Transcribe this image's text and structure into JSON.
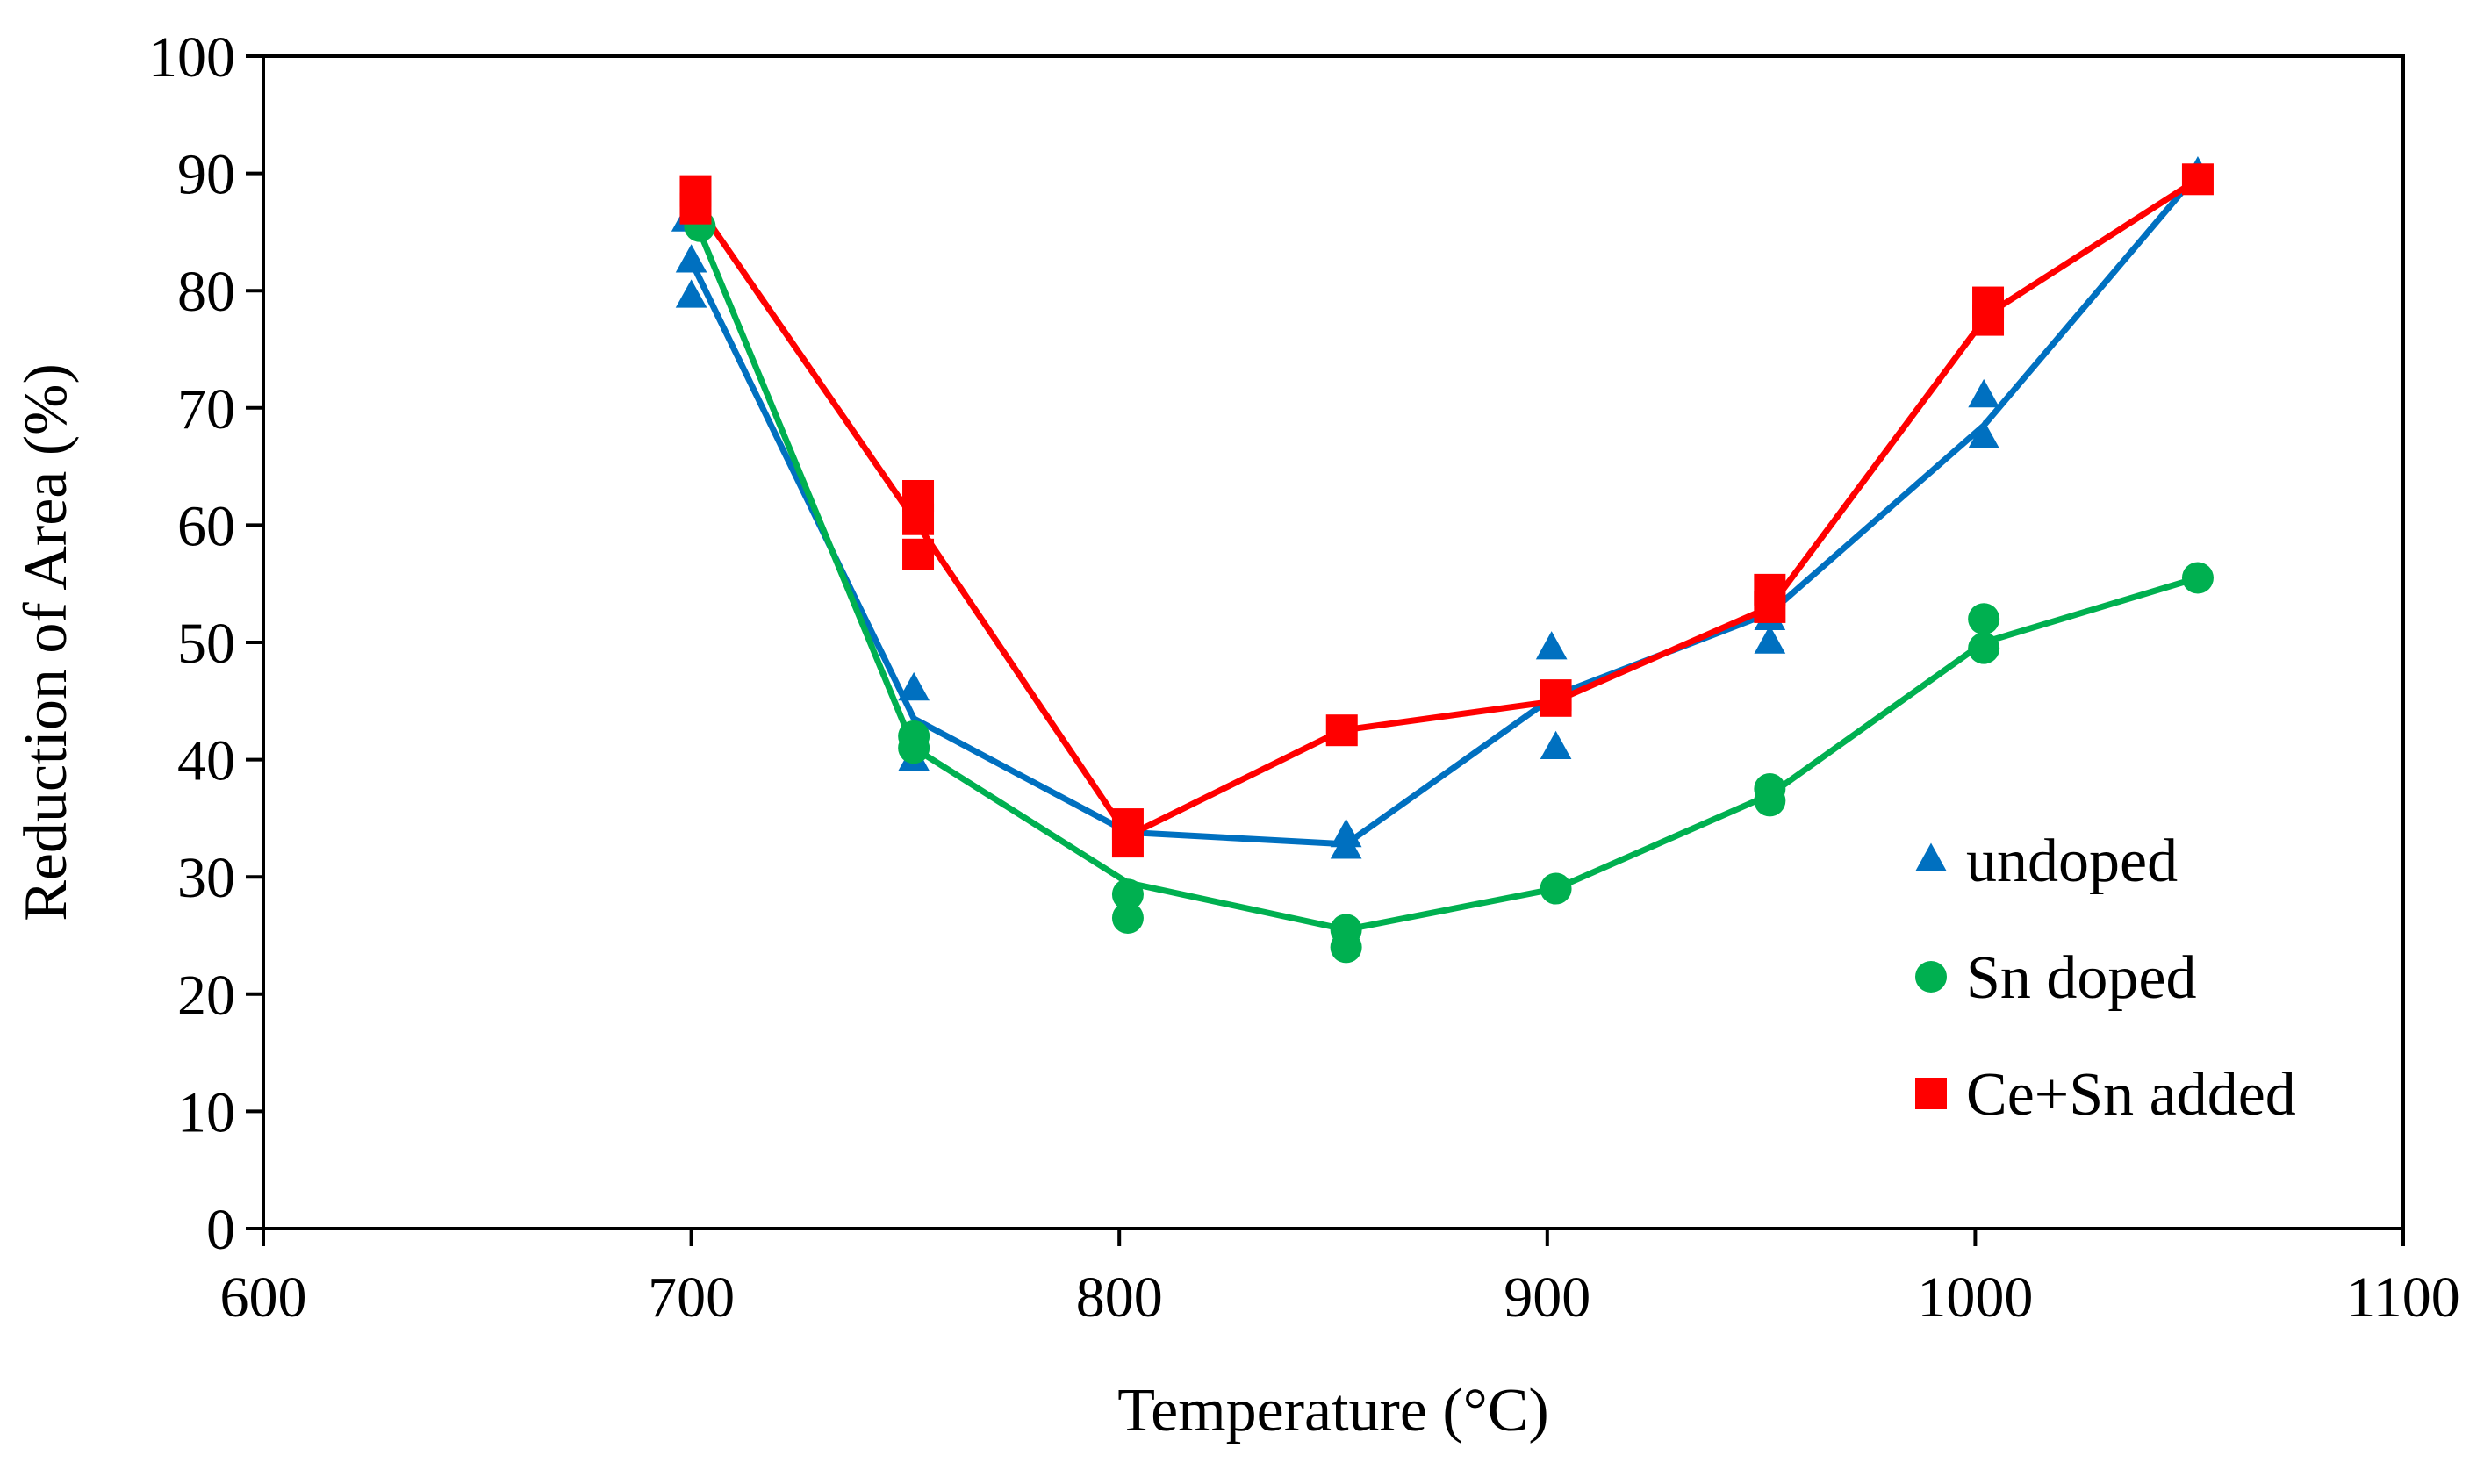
{
  "chart_data": {
    "type": "line",
    "title": "",
    "xlabel": "Temperature (°C)",
    "ylabel": "Reduction of Area (%)",
    "xlim": [
      600,
      1100
    ],
    "ylim": [
      0,
      100
    ],
    "x_ticks": [
      600,
      700,
      800,
      900,
      1000,
      1100
    ],
    "y_ticks": [
      0,
      10,
      20,
      30,
      40,
      50,
      60,
      70,
      80,
      90,
      100
    ],
    "x_tick_labels": [
      "600",
      "700",
      "800",
      "900",
      "1000",
      "1100"
    ],
    "y_tick_labels": [
      "0",
      "10",
      "20",
      "30",
      "40",
      "50",
      "60",
      "70",
      "80",
      "90",
      "100"
    ],
    "grid": false,
    "legend_position": "right",
    "series": [
      {
        "name": "undoped",
        "color": "#0070C0",
        "marker": "triangle",
        "line": {
          "x": [
            700,
            752,
            802,
            853,
            902,
            952,
            1002,
            1052
          ],
          "y": [
            82.5,
            43.5,
            33.8,
            32.8,
            45.5,
            52.5,
            68.5,
            90
          ]
        },
        "points": [
          {
            "x": 699,
            "y": 86
          },
          {
            "x": 700,
            "y": 82.5
          },
          {
            "x": 700,
            "y": 79.5
          },
          {
            "x": 752,
            "y": 46
          },
          {
            "x": 752,
            "y": 40
          },
          {
            "x": 802,
            "y": 34
          },
          {
            "x": 853,
            "y": 33.5
          },
          {
            "x": 853,
            "y": 32.5
          },
          {
            "x": 901,
            "y": 49.5
          },
          {
            "x": 902,
            "y": 41
          },
          {
            "x": 952,
            "y": 52
          },
          {
            "x": 952,
            "y": 50
          },
          {
            "x": 1002,
            "y": 71
          },
          {
            "x": 1002,
            "y": 67.5
          },
          {
            "x": 1052,
            "y": 90
          }
        ]
      },
      {
        "name": "Sn doped",
        "color": "#00B050",
        "marker": "circle",
        "line": {
          "x": [
            702,
            752,
            802,
            853,
            902,
            952,
            1002,
            1052
          ],
          "y": [
            85,
            41,
            29.5,
            25.5,
            29,
            37,
            50,
            55.5
          ]
        },
        "points": [
          {
            "x": 702,
            "y": 85.5
          },
          {
            "x": 752,
            "y": 42
          },
          {
            "x": 752,
            "y": 41
          },
          {
            "x": 802,
            "y": 28.5
          },
          {
            "x": 802,
            "y": 26.5
          },
          {
            "x": 853,
            "y": 25.5
          },
          {
            "x": 853,
            "y": 24
          },
          {
            "x": 902,
            "y": 29
          },
          {
            "x": 952,
            "y": 37.5
          },
          {
            "x": 952,
            "y": 36.5
          },
          {
            "x": 1002,
            "y": 52
          },
          {
            "x": 1002,
            "y": 49.5
          },
          {
            "x": 1052,
            "y": 55.5
          }
        ]
      },
      {
        "name": "Ce+Sn added",
        "color": "#FF0000",
        "marker": "square",
        "line": {
          "x": [
            701,
            753,
            802,
            852,
            902,
            952,
            1003,
            1052
          ],
          "y": [
            87.5,
            60,
            33.5,
            42.5,
            45,
            53,
            78,
            89.5
          ]
        },
        "points": [
          {
            "x": 701,
            "y": 88.5
          },
          {
            "x": 701,
            "y": 87
          },
          {
            "x": 753,
            "y": 62.5
          },
          {
            "x": 753,
            "y": 60.5
          },
          {
            "x": 753,
            "y": 57.5
          },
          {
            "x": 802,
            "y": 34.5
          },
          {
            "x": 802,
            "y": 33
          },
          {
            "x": 852,
            "y": 42.5
          },
          {
            "x": 902,
            "y": 45.5
          },
          {
            "x": 902,
            "y": 45
          },
          {
            "x": 952,
            "y": 54.5
          },
          {
            "x": 952,
            "y": 53
          },
          {
            "x": 1003,
            "y": 79
          },
          {
            "x": 1003,
            "y": 77.5
          },
          {
            "x": 1052,
            "y": 89.5
          }
        ]
      }
    ]
  }
}
